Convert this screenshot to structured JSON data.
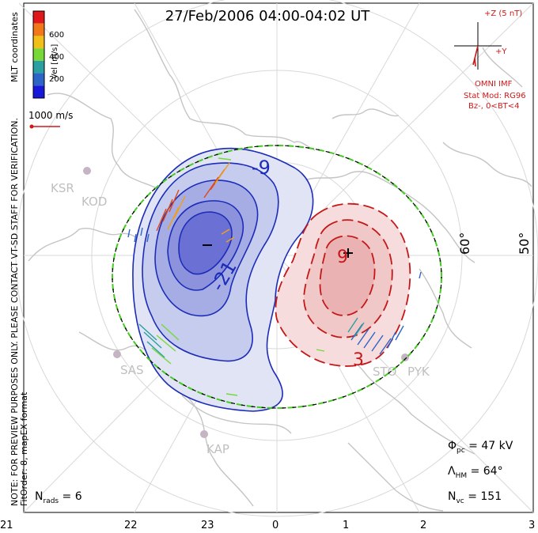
{
  "title": "27/Feb/2006 04:00-04:02 UT",
  "side_notes": {
    "line1": "NOTE: FOR PREVIEW PURPOSES ONLY. PLEASE CONTACT VT-SD STAFF FOR VERIFICATION.",
    "line2": "FitOrder: 8, mapEX format",
    "coords": "MLT coordinates"
  },
  "colorbar": {
    "label": "Vel [m/s]",
    "ticks": [
      "600",
      "400",
      "200"
    ],
    "colors": [
      "#e01818",
      "#f07818",
      "#f0c018",
      "#78d838",
      "#2aa0a0",
      "#2c64c8",
      "#1818d8"
    ]
  },
  "reference_vector": "1000 m/s",
  "imf": {
    "top_label": "+Z (5 nT)",
    "side_label": "+Y",
    "source": "OMNI IMF",
    "model_line1": "Stat Mod: RG96",
    "model_line2": "Bz-, 0<BT<4"
  },
  "latitude_labels": [
    "60°",
    "50°"
  ],
  "contour_labels": [
    "-9",
    "-21",
    "9",
    "3"
  ],
  "stations": [
    "KSR",
    "KOD",
    "SAS",
    "KAP",
    "STO",
    "PYK"
  ],
  "stats": {
    "phi_symbol": "Φ",
    "phi_sub": "pc",
    "phi_value": " = 47 kV",
    "lambda_symbol": "Λ",
    "lambda_sub": "HM",
    "lambda_value": " = 64°",
    "nvc_symbol": "N",
    "nvc_sub": "vc",
    "nvc_value": " = 151",
    "nrads_symbol": "N",
    "nrads_sub": "rads",
    "nrads_value": " = 6"
  },
  "mlt_axis": [
    "21",
    "22",
    "23",
    "0",
    "1",
    "2",
    "3"
  ],
  "colors": {
    "negative_cell": "#2b2bd0",
    "positive_cell": "#d02020",
    "boundary": "#44cc22",
    "map": "#c8c8c8",
    "station": "#c4b4c4"
  }
}
